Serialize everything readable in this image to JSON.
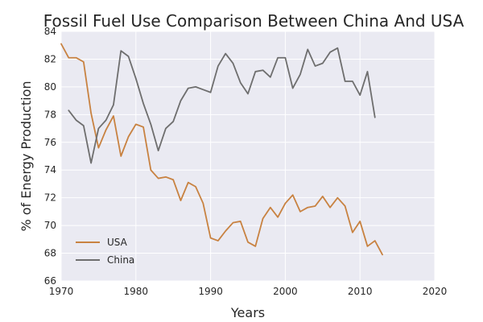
{
  "chart_data": {
    "type": "line",
    "title": "Fossil Fuel Use Comparison Between China And USA",
    "xlabel": "Years",
    "ylabel": "% of Energy Production",
    "xlim": [
      1970,
      2020
    ],
    "ylim": [
      66,
      84
    ],
    "xticks": [
      1970,
      1980,
      1990,
      2000,
      2010,
      2020
    ],
    "yticks": [
      66,
      68,
      70,
      72,
      74,
      76,
      78,
      80,
      82,
      84
    ],
    "grid": true,
    "legend_position": "lower-left",
    "background_color": "#EAEAF2",
    "series": [
      {
        "name": "USA",
        "color": "#C88241",
        "x": [
          1970,
          1971,
          1972,
          1973,
          1974,
          1975,
          1976,
          1977,
          1978,
          1979,
          1980,
          1981,
          1982,
          1983,
          1984,
          1985,
          1986,
          1987,
          1988,
          1989,
          1990,
          1991,
          1992,
          1993,
          1994,
          1995,
          1996,
          1997,
          1998,
          1999,
          2000,
          2001,
          2002,
          2003,
          2004,
          2005,
          2006,
          2007,
          2008,
          2009,
          2010,
          2011,
          2012,
          2013
        ],
        "y": [
          83.1,
          82.1,
          82.1,
          81.8,
          78.1,
          75.6,
          76.9,
          77.9,
          75.0,
          76.4,
          77.3,
          77.1,
          74.0,
          73.4,
          73.5,
          73.3,
          71.8,
          73.1,
          72.8,
          71.6,
          69.1,
          68.9,
          69.6,
          70.2,
          70.3,
          68.8,
          68.5,
          70.5,
          71.3,
          70.6,
          71.6,
          72.2,
          71.0,
          71.3,
          71.4,
          72.1,
          71.3,
          72.0,
          71.4,
          69.5,
          70.3,
          68.5,
          68.9,
          67.9
        ]
      },
      {
        "name": "China",
        "color": "#6E6E6E",
        "x": [
          1971,
          1972,
          1973,
          1974,
          1975,
          1976,
          1977,
          1978,
          1979,
          1980,
          1981,
          1982,
          1983,
          1984,
          1985,
          1986,
          1987,
          1988,
          1989,
          1990,
          1991,
          1992,
          1993,
          1994,
          1995,
          1996,
          1997,
          1998,
          1999,
          2000,
          2001,
          2002,
          2003,
          2004,
          2005,
          2006,
          2007,
          2008,
          2009,
          2010,
          2011,
          2012
        ],
        "y": [
          78.3,
          77.6,
          77.2,
          74.5,
          77.0,
          77.6,
          78.7,
          82.6,
          82.2,
          80.6,
          78.8,
          77.3,
          75.4,
          77.0,
          77.5,
          79.0,
          79.9,
          80.0,
          79.8,
          79.6,
          81.5,
          82.4,
          81.7,
          80.3,
          79.5,
          81.1,
          81.2,
          80.7,
          82.1,
          82.1,
          79.9,
          80.9,
          82.7,
          81.5,
          81.7,
          82.5,
          82.8,
          80.4,
          80.4,
          79.4,
          81.1,
          77.8
        ]
      }
    ]
  }
}
